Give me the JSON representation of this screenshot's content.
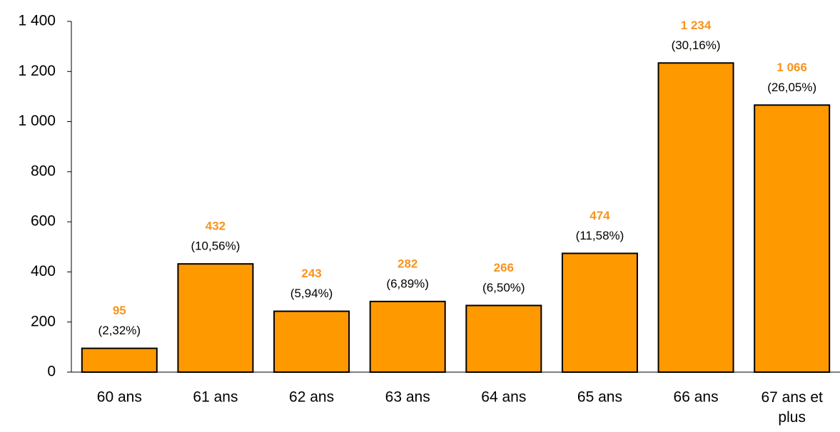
{
  "chart_data": {
    "type": "bar",
    "categories": [
      "60 ans",
      "61 ans",
      "62 ans",
      "63 ans",
      "64 ans",
      "65 ans",
      "66 ans",
      "67 ans et plus"
    ],
    "values": [
      95,
      432,
      243,
      282,
      266,
      474,
      1234,
      1066
    ],
    "value_labels": [
      "95",
      "432",
      "243",
      "282",
      "266",
      "474",
      "1 234",
      "1 066"
    ],
    "shares": [
      2.32,
      10.56,
      5.94,
      6.89,
      6.5,
      11.58,
      30.16,
      26.05
    ],
    "share_labels": [
      "(2,32%)",
      "(10,56%)",
      "(5,94%)",
      "(6,89%)",
      "(6,50%)",
      "(11,58%)",
      "(30,16%)",
      "(26,05%)"
    ],
    "color": "#ff9900",
    "ylim": [
      0,
      1400
    ],
    "yticks": [
      0,
      200,
      400,
      600,
      800,
      {
        "value": 1000,
        "label": "1 000"
      },
      {
        "value": 1200,
        "label": "1 200"
      },
      {
        "value": 1400,
        "label": "1 400"
      }
    ],
    "grid": false
  }
}
